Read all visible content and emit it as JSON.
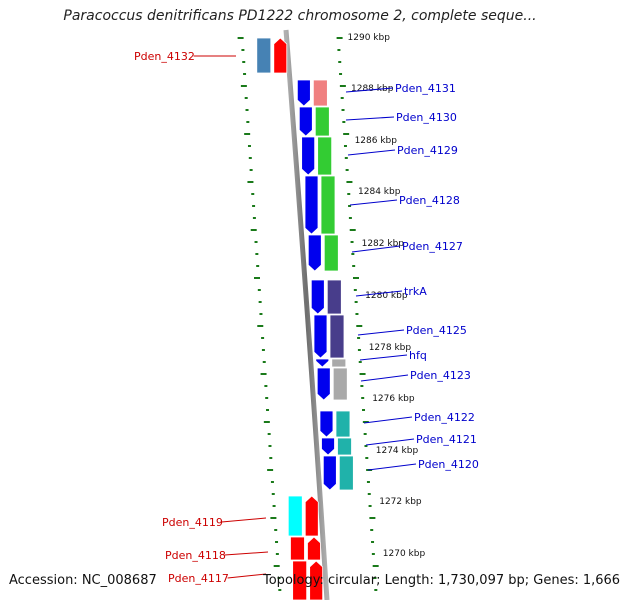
{
  "title": "Paracoccus denitrificans PD1222 chromosome 2, complete seque...",
  "footer": {
    "accession": "Accession: NC_008687",
    "stats": "Topology: circular; Length: 1,730,097 bp; Genes: 1,666"
  },
  "colors": {
    "axis": "#808080",
    "tick": "#1a7a1a",
    "forward_gene": "#0000ee",
    "reverse_gene": "#ff0000",
    "blue_label": "#0000cc",
    "red_label": "#cc0000"
  },
  "kbp_ticks": [
    {
      "label": "1290 kbp"
    },
    {
      "label": "1288 kbp"
    },
    {
      "label": "1286 kbp"
    },
    {
      "label": "1284 kbp"
    },
    {
      "label": "1282 kbp"
    },
    {
      "label": "1280 kbp"
    },
    {
      "label": "1278 kbp"
    },
    {
      "label": "1276 kbp"
    },
    {
      "label": "1274 kbp"
    },
    {
      "label": "1272 kbp"
    },
    {
      "label": "1270 kbp"
    }
  ],
  "genes": [
    {
      "label": "Pden_4132",
      "strand": "reverse",
      "color": "#4682b4"
    },
    {
      "label": "Pden_4131",
      "strand": "forward",
      "color": "#f08080"
    },
    {
      "label": "Pden_4130",
      "strand": "forward",
      "color": "#33cc33"
    },
    {
      "label": "Pden_4129",
      "strand": "forward",
      "color": "#33cc33"
    },
    {
      "label": "Pden_4128",
      "strand": "forward",
      "color": "#33cc33"
    },
    {
      "label": "Pden_4127",
      "strand": "forward",
      "color": "#33cc33"
    },
    {
      "label": "trkA",
      "strand": "forward",
      "color": "#483d8b"
    },
    {
      "label": "Pden_4125",
      "strand": "forward",
      "color": "#483d8b"
    },
    {
      "label": "hfq",
      "strand": "forward",
      "color": "#a9a9a9"
    },
    {
      "label": "Pden_4123",
      "strand": "forward",
      "color": "#a9a9a9"
    },
    {
      "label": "Pden_4122",
      "strand": "forward",
      "color": "#20b2aa"
    },
    {
      "label": "Pden_4121",
      "strand": "forward",
      "color": "#20b2aa"
    },
    {
      "label": "Pden_4120",
      "strand": "forward",
      "color": "#20b2aa"
    },
    {
      "label": "Pden_4119",
      "strand": "reverse",
      "color": "#00ffff"
    },
    {
      "label": "Pden_4118",
      "strand": "reverse",
      "color": "#ff0000"
    },
    {
      "label": "Pden_4117",
      "strand": "reverse",
      "color": "#ff0000"
    }
  ]
}
